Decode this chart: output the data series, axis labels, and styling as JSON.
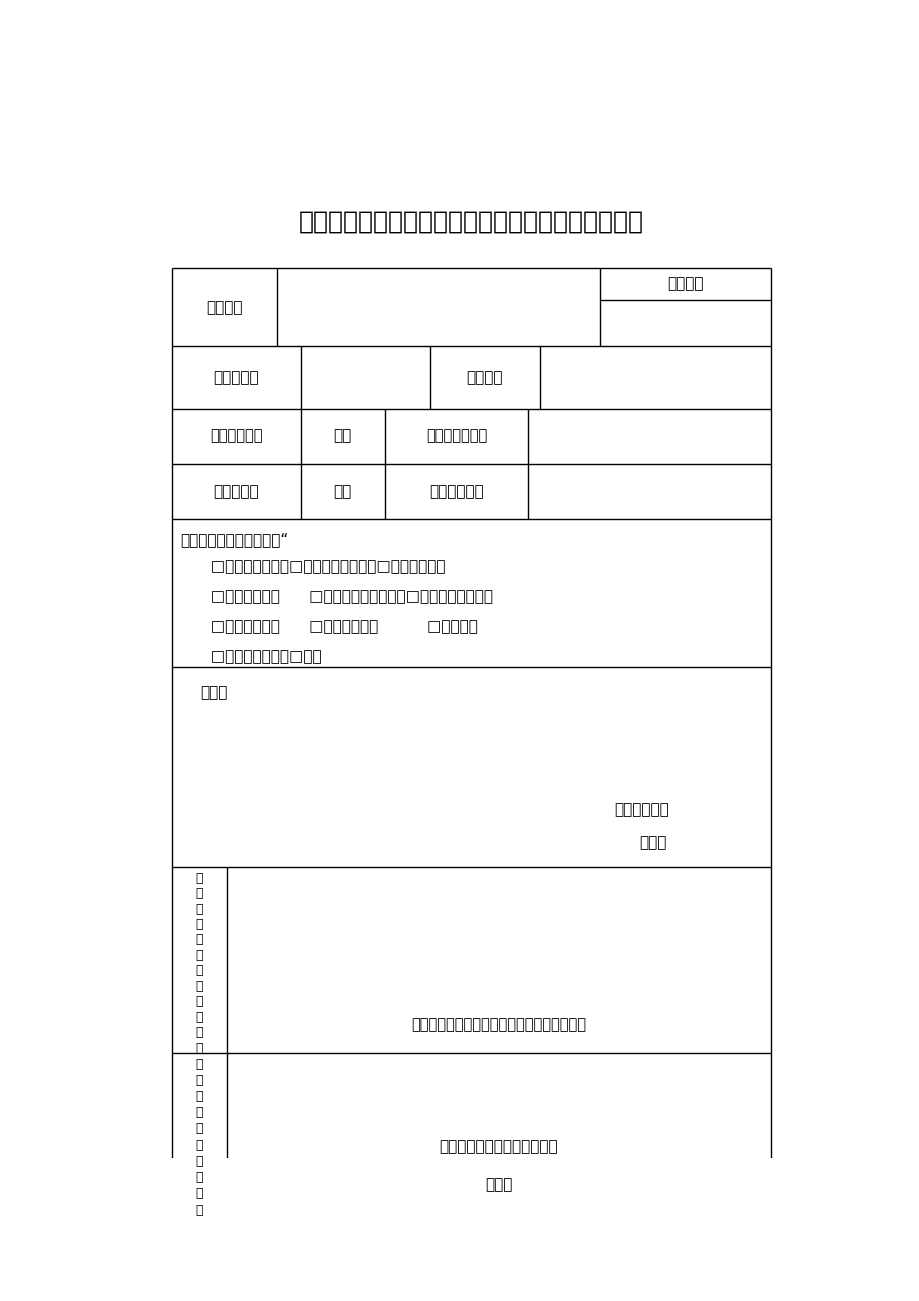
{
  "title": "重庆市教育委员会人文社会科学研究项目变更申请表",
  "bg_color": "#ffffff",
  "line_color": "#000000",
  "title_fontsize": 18,
  "body_fontsize": 11,
  "change_text_line1": "变更内容（请在方框内打“",
  "change_items": [
    "  □变更项目负责人□变更项目管理单位□改变成果形式",
    "  □改变项目名称      □研究内容有重大调整□延期一年以上一次",
    "  □延期两次以上      □自行中止项目          □申请撤项",
    "  □项目组成员变更□其他"
  ],
  "reason_text": "事由，",
  "responsible_text1": "项目负责人：",
  "responsible_text2": "年月日",
  "unit_bottom_text": "所在学校社科研究管理部门（签章）：年月日",
  "committee_bottom_text1": "重庆市教育委员会（签章）：",
  "committee_bottom_text2": "年月日",
  "row1_label": "项目名称",
  "row1_right": "项目编号",
  "row2_col1": "项目负责人",
  "row2_col3": "工作单位",
  "row3_col1": "批准立项时间",
  "row3_col2": "年月",
  "row3_col3": "原项目成果形式",
  "row4_col1": "原完成时间",
  "row4_col2": "年月",
  "row4_col3": "延期完成时间",
  "unit_left_chars": [
    "目",
    "任",
    "所",
    "单",
    "意",
    "位",
    "见",
    "后",
    "项",
    "责",
    "人",
    "在"
  ],
  "committee_left_chars": [
    "庆",
    "教",
    "委",
    "会",
    "意",
    "重",
    "市",
    "育",
    "员",
    "见"
  ]
}
